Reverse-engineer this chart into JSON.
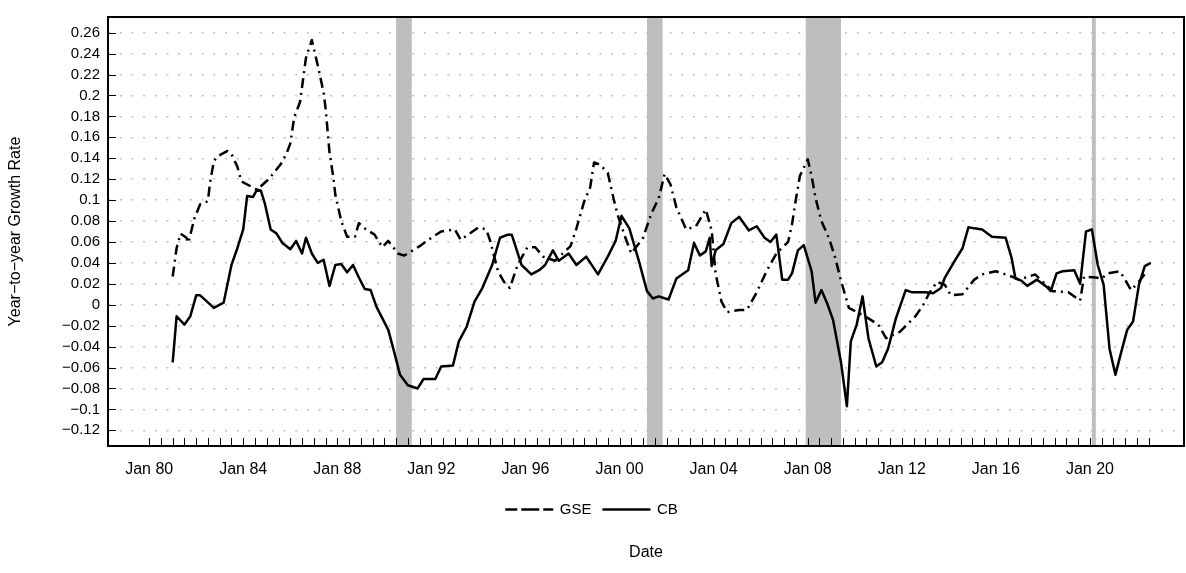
{
  "chart_data": {
    "type": "line",
    "xlabel": "Date",
    "ylabel": "Year−to−year Growth Rate",
    "legend": "bottom",
    "grid": "y",
    "xlim": [
      "1978-04",
      "2024-01"
    ],
    "ylim": [
      -0.135,
      0.275
    ],
    "yticks": [
      {
        "value": -0.12,
        "label": "−0.12"
      },
      {
        "value": -0.1,
        "label": "−0.1"
      },
      {
        "value": -0.08,
        "label": "−0.08"
      },
      {
        "value": -0.06,
        "label": "−0.06"
      },
      {
        "value": -0.04,
        "label": "−0.04"
      },
      {
        "value": -0.02,
        "label": "−0.02"
      },
      0,
      0.02,
      0.04,
      0.06,
      0.08,
      0.1,
      0.12,
      0.14,
      0.16,
      0.18,
      0.2,
      0.22,
      0.24,
      0.26
    ],
    "xticks": [
      {
        "value": "1980-01",
        "label": "Jan 80"
      },
      {
        "value": "1980-07",
        "label": null
      },
      {
        "value": "1981-01",
        "label": null
      },
      {
        "value": "1981-07",
        "label": null
      },
      {
        "value": "1982-01",
        "label": null
      },
      {
        "value": "1982-07",
        "label": null
      },
      {
        "value": "1983-01",
        "label": null
      },
      {
        "value": "1983-07",
        "label": null
      },
      {
        "value": "1984-01",
        "label": "Jan 84"
      },
      {
        "value": "1984-07",
        "label": null
      },
      {
        "value": "1985-01",
        "label": null
      },
      {
        "value": "1985-07",
        "label": null
      },
      {
        "value": "1986-01",
        "label": null
      },
      {
        "value": "1986-07",
        "label": null
      },
      {
        "value": "1987-01",
        "label": null
      },
      {
        "value": "1987-07",
        "label": null
      },
      {
        "value": "1988-01",
        "label": "Jan 88"
      },
      {
        "value": "1988-07",
        "label": null
      },
      {
        "value": "1989-01",
        "label": null
      },
      {
        "value": "1989-07",
        "label": null
      },
      {
        "value": "1990-01",
        "label": null
      },
      {
        "value": "1990-07",
        "label": null
      },
      {
        "value": "1991-01",
        "label": null
      },
      {
        "value": "1991-07",
        "label": null
      },
      {
        "value": "1992-01",
        "label": "Jan 92"
      },
      {
        "value": "1992-07",
        "label": null
      },
      {
        "value": "1993-01",
        "label": null
      },
      {
        "value": "1993-07",
        "label": null
      },
      {
        "value": "1994-01",
        "label": null
      },
      {
        "value": "1994-07",
        "label": null
      },
      {
        "value": "1995-01",
        "label": null
      },
      {
        "value": "1995-07",
        "label": null
      },
      {
        "value": "1996-01",
        "label": "Jan 96"
      },
      {
        "value": "1996-07",
        "label": null
      },
      {
        "value": "1997-01",
        "label": null
      },
      {
        "value": "1997-07",
        "label": null
      },
      {
        "value": "1998-01",
        "label": null
      },
      {
        "value": "1998-07",
        "label": null
      },
      {
        "value": "1999-01",
        "label": null
      },
      {
        "value": "1999-07",
        "label": null
      },
      {
        "value": "2000-01",
        "label": "Jan 00"
      },
      {
        "value": "2000-07",
        "label": null
      },
      {
        "value": "2001-01",
        "label": null
      },
      {
        "value": "2001-07",
        "label": null
      },
      {
        "value": "2002-01",
        "label": null
      },
      {
        "value": "2002-07",
        "label": null
      },
      {
        "value": "2003-01",
        "label": null
      },
      {
        "value": "2003-07",
        "label": null
      },
      {
        "value": "2004-01",
        "label": "Jan 04"
      },
      {
        "value": "2004-07",
        "label": null
      },
      {
        "value": "2005-01",
        "label": null
      },
      {
        "value": "2005-07",
        "label": null
      },
      {
        "value": "2006-01",
        "label": null
      },
      {
        "value": "2006-07",
        "label": null
      },
      {
        "value": "2007-01",
        "label": null
      },
      {
        "value": "2007-07",
        "label": null
      },
      {
        "value": "2008-01",
        "label": "Jan 08"
      },
      {
        "value": "2008-07",
        "label": null
      },
      {
        "value": "2009-01",
        "label": null
      },
      {
        "value": "2009-07",
        "label": null
      },
      {
        "value": "2010-01",
        "label": null
      },
      {
        "value": "2010-07",
        "label": null
      },
      {
        "value": "2011-01",
        "label": null
      },
      {
        "value": "2011-07",
        "label": null
      },
      {
        "value": "2012-01",
        "label": "Jan 12"
      },
      {
        "value": "2012-07",
        "label": null
      },
      {
        "value": "2013-01",
        "label": null
      },
      {
        "value": "2013-07",
        "label": null
      },
      {
        "value": "2014-01",
        "label": null
      },
      {
        "value": "2014-07",
        "label": null
      },
      {
        "value": "2015-01",
        "label": null
      },
      {
        "value": "2015-07",
        "label": null
      },
      {
        "value": "2016-01",
        "label": "Jan 16"
      },
      {
        "value": "2016-07",
        "label": null
      },
      {
        "value": "2017-01",
        "label": null
      },
      {
        "value": "2017-07",
        "label": null
      },
      {
        "value": "2018-01",
        "label": null
      },
      {
        "value": "2018-07",
        "label": null
      },
      {
        "value": "2019-01",
        "label": null
      },
      {
        "value": "2019-07",
        "label": null
      },
      {
        "value": "2020-01",
        "label": "Jan 20"
      },
      {
        "value": "2020-07",
        "label": null
      },
      {
        "value": "2021-01",
        "label": null
      },
      {
        "value": "2021-07",
        "label": null
      },
      {
        "value": "2022-01",
        "label": null
      },
      {
        "value": "2022-07",
        "label": null
      }
    ],
    "bands": [
      {
        "axis": "x",
        "from": "1990-07",
        "to": "1991-03",
        "color": "#bebebe"
      },
      {
        "axis": "x",
        "from": "2001-03",
        "to": "2001-11",
        "color": "#bebebe"
      },
      {
        "axis": "x",
        "from": "2007-12",
        "to": "2009-06",
        "color": "#bebebe"
      },
      {
        "axis": "x",
        "from": "2020-02",
        "to": "2020-04",
        "color": "#bebebe"
      }
    ],
    "series": [
      {
        "name": "GSE",
        "color": "#000000",
        "line_style": "dashed",
        "x": [
          "1981-01",
          "1981-03",
          "1981-05",
          "1981-08",
          "1981-09",
          "1981-12",
          "1982-03",
          "1982-07",
          "1982-08",
          "1982-10",
          "1982-12",
          "1983-05",
          "1983-07",
          "1983-10",
          "1983-12",
          "1984-08",
          "1985-02",
          "1985-08",
          "1985-11",
          "1986-01",
          "1986-03",
          "1986-06",
          "1986-09",
          "1986-12",
          "1987-01",
          "1987-03",
          "1987-06",
          "1987-07",
          "1987-09",
          "1987-11",
          "1987-12",
          "1988-03",
          "1988-06",
          "1988-10",
          "1988-12",
          "1989-03",
          "1989-08",
          "1989-12",
          "1990-03",
          "1990-08",
          "1990-11",
          "1991-01",
          "1991-07",
          "1992-01",
          "1992-06",
          "1993-01",
          "1993-04",
          "1993-07",
          "1994-01",
          "1994-05",
          "1994-07",
          "1994-11",
          "1995-02",
          "1995-05",
          "1995-09",
          "1996-02",
          "1996-06",
          "1996-10",
          "1997-04",
          "1997-12",
          "1998-03",
          "1998-07",
          "1998-10",
          "1998-12",
          "1999-03",
          "1999-07",
          "1999-10",
          "1999-12",
          "2000-04",
          "2000-07",
          "2001-01",
          "2001-05",
          "2001-09",
          "2001-12",
          "2002-03",
          "2002-06",
          "2002-11",
          "2003-04",
          "2003-09",
          "2003-12",
          "2004-02",
          "2004-05",
          "2004-08",
          "2005-02",
          "2005-06",
          "2005-11",
          "2006-04",
          "2006-09",
          "2007-03",
          "2007-05",
          "2007-07",
          "2007-09",
          "2008-01",
          "2008-03",
          "2008-05",
          "2008-08",
          "2008-12",
          "2009-03",
          "2009-06",
          "2009-10",
          "2010-08",
          "2011-01",
          "2011-05",
          "2011-12",
          "2012-08",
          "2012-12",
          "2013-03",
          "2013-07",
          "2013-11",
          "2014-02",
          "2014-08",
          "2015-02",
          "2015-06",
          "2016-01",
          "2016-09",
          "2017-01",
          "2017-09",
          "2018-06",
          "2019-02",
          "2019-08",
          "2019-10",
          "2020-04",
          "2020-07",
          "2020-10",
          "2021-04",
          "2021-06",
          "2021-10",
          "2022-02",
          "2022-06"
        ],
        "values": [
          0.027,
          0.054,
          0.068,
          0.064,
          0.059,
          0.082,
          0.096,
          0.099,
          0.116,
          0.137,
          0.142,
          0.147,
          0.144,
          0.132,
          0.118,
          0.11,
          0.12,
          0.134,
          0.144,
          0.154,
          0.179,
          0.194,
          0.236,
          0.253,
          0.245,
          0.229,
          0.203,
          0.188,
          0.146,
          0.121,
          0.105,
          0.08,
          0.065,
          0.065,
          0.078,
          0.073,
          0.067,
          0.055,
          0.061,
          0.049,
          0.047,
          0.049,
          0.056,
          0.064,
          0.07,
          0.072,
          0.062,
          0.066,
          0.074,
          0.072,
          0.061,
          0.032,
          0.022,
          0.016,
          0.038,
          0.055,
          0.055,
          0.046,
          0.042,
          0.056,
          0.073,
          0.099,
          0.112,
          0.136,
          0.134,
          0.126,
          0.101,
          0.086,
          0.064,
          0.049,
          0.064,
          0.086,
          0.102,
          0.125,
          0.115,
          0.093,
          0.072,
          0.075,
          0.091,
          0.071,
          0.03,
          0.003,
          -0.007,
          -0.005,
          -0.005,
          0.012,
          0.032,
          0.049,
          0.06,
          0.077,
          0.101,
          0.123,
          0.139,
          0.123,
          0.102,
          0.08,
          0.063,
          0.045,
          0.023,
          -0.003,
          -0.013,
          -0.019,
          -0.032,
          -0.026,
          -0.011,
          0.0,
          0.011,
          0.022,
          0.019,
          0.009,
          0.01,
          0.024,
          0.029,
          0.032,
          0.027,
          0.024,
          0.029,
          0.013,
          0.012,
          0.004,
          0.027,
          0.026,
          0.025,
          0.03,
          0.032,
          0.027,
          0.014,
          0.022,
          0.032
        ]
      },
      {
        "name": "CB",
        "color": "#000000",
        "line_style": "solid",
        "x": [
          "1981-01",
          "1981-03",
          "1981-07",
          "1981-10",
          "1982-01",
          "1982-03",
          "1982-06",
          "1982-10",
          "1983-03",
          "1983-07",
          "1983-10",
          "1984-01",
          "1984-03",
          "1984-06",
          "1984-08",
          "1984-10",
          "1984-12",
          "1985-03",
          "1985-06",
          "1985-09",
          "1986-01",
          "1986-04",
          "1986-07",
          "1986-09",
          "1986-12",
          "1987-03",
          "1987-06",
          "1987-09",
          "1987-12",
          "1988-03",
          "1988-06",
          "1988-09",
          "1988-12",
          "1989-03",
          "1989-06",
          "1989-09",
          "1989-12",
          "1990-03",
          "1990-06",
          "1990-09",
          "1991-01",
          "1991-06",
          "1991-09",
          "1992-03",
          "1992-06",
          "1992-12",
          "1993-03",
          "1993-07",
          "1993-11",
          "1994-03",
          "1994-08",
          "1994-12",
          "1995-04",
          "1995-06",
          "1995-11",
          "1996-04",
          "1996-08",
          "1996-11",
          "1997-03",
          "1997-06",
          "1997-11",
          "1998-03",
          "1998-08",
          "1999-02",
          "1999-07",
          "1999-11",
          "2000-02",
          "2000-06",
          "2000-11",
          "2001-03",
          "2001-06",
          "2001-09",
          "2002-02",
          "2002-06",
          "2002-12",
          "2003-03",
          "2003-06",
          "2003-09",
          "2003-11",
          "2003-12",
          "2004-02",
          "2004-06",
          "2004-10",
          "2005-02",
          "2005-07",
          "2005-11",
          "2006-03",
          "2006-06",
          "2006-09",
          "2006-12",
          "2007-03",
          "2007-05",
          "2007-08",
          "2007-11",
          "2008-03",
          "2008-05",
          "2008-08",
          "2008-11",
          "2009-02",
          "2009-06",
          "2009-09",
          "2009-11",
          "2010-02",
          "2010-05",
          "2010-08",
          "2010-12",
          "2011-03",
          "2011-06",
          "2011-10",
          "2012-03",
          "2012-06",
          "2013-01",
          "2013-05",
          "2013-09",
          "2013-11",
          "2014-04",
          "2014-08",
          "2014-11",
          "2015-02",
          "2015-06",
          "2015-11",
          "2016-06",
          "2016-09",
          "2016-11",
          "2017-02",
          "2017-05",
          "2017-10",
          "2018-03",
          "2018-05",
          "2018-08",
          "2018-11",
          "2019-05",
          "2019-08",
          "2019-11",
          "2020-02",
          "2020-05",
          "2020-08",
          "2020-11",
          "2021-02",
          "2021-05",
          "2021-08",
          "2021-11",
          "2022-02",
          "2022-05",
          "2022-08"
        ],
        "values": [
          -0.055,
          -0.011,
          -0.019,
          -0.011,
          0.009,
          0.009,
          0.004,
          -0.003,
          0.002,
          0.038,
          0.054,
          0.072,
          0.104,
          0.103,
          0.11,
          0.109,
          0.097,
          0.072,
          0.068,
          0.059,
          0.053,
          0.061,
          0.049,
          0.064,
          0.049,
          0.04,
          0.043,
          0.018,
          0.038,
          0.039,
          0.031,
          0.038,
          0.026,
          0.015,
          0.014,
          -0.002,
          -0.013,
          -0.024,
          -0.045,
          -0.067,
          -0.077,
          -0.08,
          -0.071,
          -0.071,
          -0.059,
          -0.058,
          -0.035,
          -0.021,
          0.003,
          0.016,
          0.038,
          0.064,
          0.067,
          0.067,
          0.038,
          0.029,
          0.033,
          0.038,
          0.052,
          0.042,
          0.049,
          0.038,
          0.046,
          0.029,
          0.046,
          0.061,
          0.085,
          0.073,
          0.041,
          0.013,
          0.006,
          0.008,
          0.005,
          0.025,
          0.033,
          0.059,
          0.047,
          0.051,
          0.064,
          0.037,
          0.052,
          0.058,
          0.078,
          0.084,
          0.071,
          0.075,
          0.064,
          0.06,
          0.067,
          0.024,
          0.024,
          0.03,
          0.052,
          0.057,
          0.032,
          0.002,
          0.014,
          0.001,
          -0.015,
          -0.055,
          -0.097,
          -0.035,
          -0.019,
          0.008,
          -0.032,
          -0.059,
          -0.055,
          -0.042,
          -0.013,
          0.014,
          0.012,
          0.012,
          0.011,
          0.016,
          0.026,
          0.042,
          0.054,
          0.074,
          0.073,
          0.072,
          0.065,
          0.064,
          0.045,
          0.025,
          0.023,
          0.018,
          0.024,
          0.017,
          0.013,
          0.03,
          0.032,
          0.033,
          0.02,
          0.07,
          0.072,
          0.038,
          0.019,
          -0.042,
          -0.067,
          -0.045,
          -0.024,
          -0.016,
          0.019,
          0.037,
          0.04
        ]
      }
    ]
  }
}
